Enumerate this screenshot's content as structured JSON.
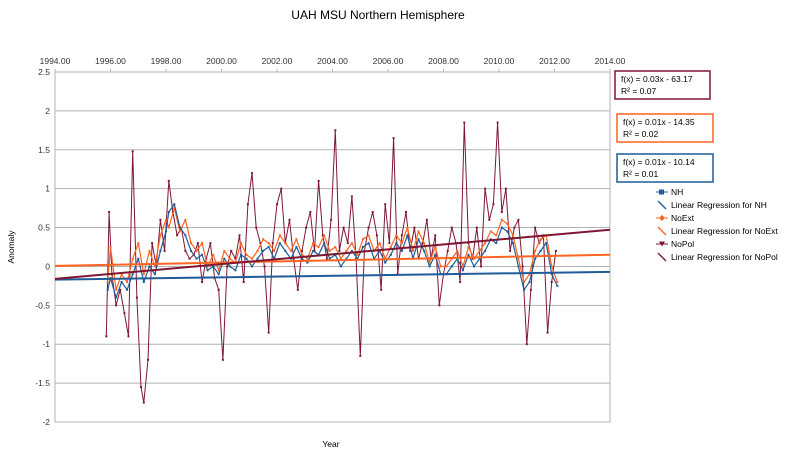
{
  "chart_data": {
    "type": "line",
    "title": "UAH MSU Northern Hemisphere",
    "xlabel": "Year",
    "ylabel": "Anomaly",
    "xlim": [
      1994,
      2014
    ],
    "ylim": [
      -2,
      2.5
    ],
    "x_ticks": [
      "1994.00",
      "1996.00",
      "1998.00",
      "2000.00",
      "2002.00",
      "2004.00",
      "2006.00",
      "2008.00",
      "2010.00",
      "2012.00",
      "2014.00"
    ],
    "y_ticks": [
      "2.5",
      "2",
      "1.5",
      "1",
      "0.5",
      "0",
      "-0.5",
      "-1",
      "-1.5",
      "-2"
    ],
    "grid": true,
    "legend_position": "right",
    "colors": {
      "NH": "#1f5c99",
      "NoExt": "#ff6420",
      "NoPol": "#7f1734"
    },
    "series": [
      {
        "name": "NH",
        "color": "#1f5c99",
        "marker": "square",
        "x": [
          1995.9,
          1996.0,
          1996.2,
          1996.4,
          1996.6,
          1996.8,
          1997.0,
          1997.2,
          1997.4,
          1997.6,
          1997.8,
          1998.0,
          1998.1,
          1998.3,
          1998.5,
          1998.7,
          1998.9,
          1999.1,
          1999.3,
          1999.5,
          1999.7,
          1999.9,
          2000.1,
          2000.3,
          2000.5,
          2000.7,
          2000.9,
          2001.1,
          2001.3,
          2001.5,
          2001.7,
          2001.9,
          2002.1,
          2002.3,
          2002.5,
          2002.7,
          2002.9,
          2003.1,
          2003.3,
          2003.5,
          2003.7,
          2003.9,
          2004.1,
          2004.3,
          2004.5,
          2004.7,
          2004.9,
          2005.1,
          2005.3,
          2005.5,
          2005.7,
          2005.9,
          2006.1,
          2006.3,
          2006.5,
          2006.7,
          2006.9,
          2007.1,
          2007.3,
          2007.5,
          2007.7,
          2007.9,
          2008.1,
          2008.3,
          2008.5,
          2008.7,
          2008.9,
          2009.1,
          2009.3,
          2009.5,
          2009.7,
          2009.9,
          2010.1,
          2010.3,
          2010.5,
          2010.7,
          2010.9,
          2011.1,
          2011.3,
          2011.5,
          2011.7,
          2011.9,
          2012.1
        ],
        "y": [
          -0.3,
          -0.15,
          -0.4,
          -0.2,
          -0.3,
          -0.1,
          0.1,
          -0.2,
          0.0,
          -0.1,
          0.2,
          0.45,
          0.7,
          0.8,
          0.5,
          0.4,
          0.2,
          0.1,
          0.15,
          -0.05,
          0.0,
          -0.1,
          0.1,
          0.0,
          -0.05,
          0.15,
          0.1,
          0.0,
          0.1,
          0.2,
          0.25,
          0.1,
          0.3,
          0.2,
          0.1,
          0.25,
          0.1,
          0.05,
          0.2,
          0.15,
          0.3,
          0.1,
          0.15,
          0.0,
          0.1,
          0.2,
          0.1,
          0.25,
          0.3,
          0.1,
          0.2,
          0.05,
          0.15,
          0.3,
          0.2,
          0.4,
          0.1,
          0.35,
          0.2,
          0.0,
          0.15,
          -0.1,
          -0.1,
          0.0,
          0.1,
          -0.05,
          0.15,
          0.0,
          0.1,
          0.2,
          0.35,
          0.3,
          0.5,
          0.45,
          0.3,
          0.0,
          -0.3,
          -0.2,
          0.1,
          0.2,
          0.3,
          -0.1,
          -0.25
        ]
      },
      {
        "name": "NoExt",
        "color": "#ff6420",
        "marker": "diamond",
        "x": [
          1995.9,
          1996.0,
          1996.2,
          1996.4,
          1996.6,
          1996.8,
          1997.0,
          1997.2,
          1997.4,
          1997.6,
          1997.8,
          1998.0,
          1998.1,
          1998.3,
          1998.5,
          1998.7,
          1998.9,
          1999.1,
          1999.3,
          1999.5,
          1999.7,
          1999.9,
          2000.1,
          2000.3,
          2000.5,
          2000.7,
          2000.9,
          2001.1,
          2001.3,
          2001.5,
          2001.7,
          2001.9,
          2002.1,
          2002.3,
          2002.5,
          2002.7,
          2002.9,
          2003.1,
          2003.3,
          2003.5,
          2003.7,
          2003.9,
          2004.1,
          2004.3,
          2004.5,
          2004.7,
          2004.9,
          2005.1,
          2005.3,
          2005.5,
          2005.7,
          2005.9,
          2006.1,
          2006.3,
          2006.5,
          2006.7,
          2006.9,
          2007.1,
          2007.3,
          2007.5,
          2007.7,
          2007.9,
          2008.1,
          2008.3,
          2008.5,
          2008.7,
          2008.9,
          2009.1,
          2009.3,
          2009.5,
          2009.7,
          2009.9,
          2010.1,
          2010.3,
          2010.5,
          2010.7,
          2010.9,
          2011.1,
          2011.3,
          2011.5,
          2011.7,
          2011.9,
          2012.1
        ],
        "y": [
          -0.2,
          0.25,
          -0.3,
          -0.1,
          -0.2,
          0.1,
          0.3,
          -0.1,
          0.2,
          0.0,
          0.4,
          0.6,
          0.5,
          0.75,
          0.45,
          0.6,
          0.3,
          0.2,
          0.3,
          0.0,
          0.15,
          -0.05,
          0.2,
          0.1,
          0.05,
          0.3,
          0.15,
          0.1,
          0.2,
          0.35,
          0.3,
          0.2,
          0.4,
          0.3,
          0.2,
          0.35,
          0.15,
          0.1,
          0.3,
          0.25,
          0.4,
          0.2,
          0.25,
          0.1,
          0.2,
          0.3,
          0.15,
          0.35,
          0.4,
          0.2,
          0.3,
          0.1,
          0.25,
          0.4,
          0.3,
          0.5,
          0.2,
          0.45,
          0.3,
          0.05,
          0.25,
          0.0,
          0.0,
          0.1,
          0.2,
          0.0,
          0.25,
          0.1,
          0.2,
          0.3,
          0.45,
          0.4,
          0.6,
          0.55,
          0.4,
          0.1,
          -0.2,
          -0.1,
          0.2,
          0.35,
          0.4,
          0.0,
          -0.2
        ]
      },
      {
        "name": "NoPol",
        "color": "#7f1734",
        "marker": "triangle",
        "x": [
          1995.85,
          1995.95,
          1996.05,
          1996.2,
          1996.35,
          1996.5,
          1996.65,
          1996.8,
          1996.95,
          1997.1,
          1997.2,
          1997.35,
          1997.5,
          1997.65,
          1997.8,
          1997.95,
          1998.1,
          1998.25,
          1998.4,
          1998.55,
          1998.7,
          1998.85,
          1999.0,
          1999.15,
          1999.3,
          1999.45,
          1999.6,
          1999.75,
          1999.9,
          2000.05,
          2000.2,
          2000.35,
          2000.5,
          2000.65,
          2000.8,
          2000.95,
          2001.1,
          2001.25,
          2001.4,
          2001.55,
          2001.7,
          2001.85,
          2002.0,
          2002.15,
          2002.3,
          2002.45,
          2002.6,
          2002.75,
          2002.9,
          2003.05,
          2003.2,
          2003.35,
          2003.5,
          2003.65,
          2003.8,
          2003.95,
          2004.1,
          2004.25,
          2004.4,
          2004.55,
          2004.7,
          2004.85,
          2005.0,
          2005.15,
          2005.3,
          2005.45,
          2005.6,
          2005.75,
          2005.9,
          2006.05,
          2006.2,
          2006.35,
          2006.5,
          2006.65,
          2006.8,
          2006.95,
          2007.1,
          2007.25,
          2007.4,
          2007.55,
          2007.7,
          2007.85,
          2008.0,
          2008.15,
          2008.3,
          2008.45,
          2008.6,
          2008.75,
          2008.9,
          2009.05,
          2009.2,
          2009.35,
          2009.5,
          2009.65,
          2009.8,
          2009.95,
          2010.1,
          2010.25,
          2010.4,
          2010.55,
          2010.7,
          2010.85,
          2011.0,
          2011.15,
          2011.3,
          2011.45,
          2011.6,
          2011.75,
          2011.9,
          2012.05
        ],
        "y": [
          -0.9,
          0.7,
          -0.1,
          -0.5,
          -0.3,
          -0.6,
          -0.9,
          1.48,
          -0.4,
          -1.55,
          -1.75,
          -1.2,
          0.3,
          0.0,
          0.6,
          0.2,
          1.1,
          0.7,
          0.4,
          0.5,
          0.2,
          0.1,
          0.15,
          0.3,
          -0.2,
          0.1,
          0.3,
          -0.15,
          -0.3,
          -1.2,
          0.0,
          0.2,
          0.1,
          0.4,
          -0.2,
          0.8,
          1.2,
          0.5,
          0.3,
          0.0,
          -0.85,
          0.3,
          0.8,
          1.0,
          0.3,
          0.6,
          0.1,
          -0.3,
          0.2,
          0.5,
          0.7,
          0.2,
          1.1,
          0.4,
          0.1,
          0.6,
          1.75,
          0.2,
          0.5,
          0.3,
          0.9,
          0.1,
          -1.15,
          0.2,
          0.5,
          0.7,
          0.4,
          -0.3,
          0.8,
          0.3,
          1.65,
          -0.1,
          0.4,
          0.7,
          0.2,
          0.5,
          0.1,
          0.3,
          0.6,
          0.1,
          0.4,
          -0.5,
          -0.1,
          0.2,
          0.5,
          0.3,
          -0.2,
          1.85,
          0.3,
          0.1,
          0.5,
          0.0,
          1.0,
          0.6,
          0.8,
          1.85,
          0.7,
          1.0,
          0.2,
          0.5,
          0.6,
          0.0,
          -1.0,
          -0.3,
          0.5,
          0.3,
          0.4,
          -0.85,
          -0.2,
          0.2
        ]
      }
    ],
    "regressions": [
      {
        "legend": "Linear Regression for NH",
        "equation": "f(x) = 0.01x - 10.14",
        "r2": "R² = 0.01",
        "slope": 0.005,
        "intercept": -10.14,
        "color": "#1f5c99"
      },
      {
        "legend": "Linear Regression for NoExt",
        "equation": "f(x) = 0.01x - 14.35",
        "r2": "R² = 0.02",
        "slope": 0.0072,
        "intercept": -14.35,
        "color": "#ff6420"
      },
      {
        "legend": "Linear Regression for NoPol",
        "equation": "f(x) = 0.03x - 63.17",
        "r2": "R² = 0.07",
        "slope": 0.0316,
        "intercept": -63.17,
        "color": "#7f1734"
      }
    ],
    "legend": [
      "NH",
      "Linear Regression for NH",
      "NoExt",
      "Linear Regression for NoExt",
      "NoPol",
      "Linear Regression for NoPol"
    ]
  }
}
